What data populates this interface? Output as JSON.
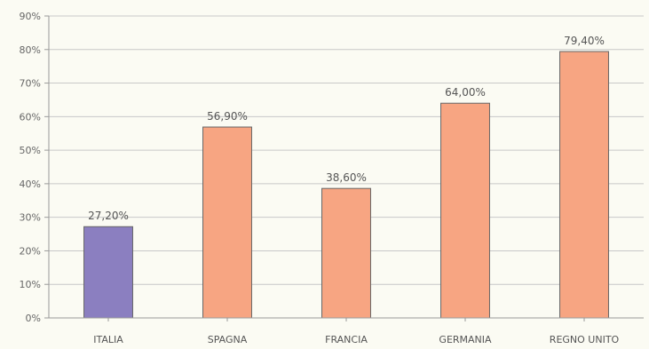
{
  "chart_data": {
    "type": "bar",
    "categories": [
      "ITALIA",
      "SPAGNA",
      "FRANCIA",
      "GERMANIA",
      "REGNO UNITO"
    ],
    "values": [
      27.2,
      56.9,
      38.6,
      64.0,
      79.4
    ],
    "value_labels": [
      "27,20%",
      "56,90%",
      "38,60%",
      "64,00%",
      "79,40%"
    ],
    "bar_colors": [
      "#8b7fc0",
      "#f7a582",
      "#f7a582",
      "#f7a582",
      "#f7a582"
    ],
    "yticks": [
      0,
      10,
      20,
      30,
      40,
      50,
      60,
      70,
      80,
      90
    ],
    "ytick_labels": [
      "0%",
      "10%",
      "20%",
      "30%",
      "40%",
      "50%",
      "60%",
      "70%",
      "80%",
      "90%"
    ],
    "ylim": [
      0,
      90
    ],
    "grid": true,
    "title": "",
    "xlabel": "",
    "ylabel": ""
  },
  "colors": {
    "background": "#fbfbf3",
    "gridline": "#c8c8c8",
    "bar_border": "#666666"
  }
}
